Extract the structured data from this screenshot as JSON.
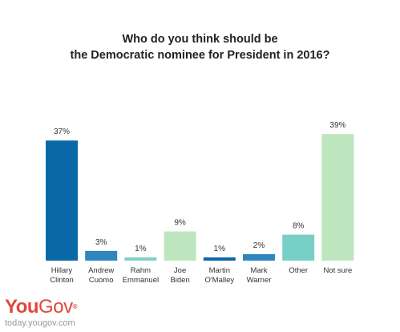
{
  "title_line1": "Who do you think should be",
  "title_line2": "the Democratic nominee for President in 2016?",
  "brand": {
    "you": "You",
    "gov": "Gov",
    "reg": "®",
    "site": "today.yougov.com"
  },
  "chart_data": {
    "type": "bar",
    "title": "Who do you think should be the Democratic nominee for President in 2016?",
    "categories": [
      [
        "Hillary",
        "Clinton"
      ],
      [
        "Andrew",
        "Cuomo"
      ],
      [
        "Rahm",
        "Emmanuel"
      ],
      [
        "Joe",
        "Biden"
      ],
      [
        "Martin",
        "O'Malley"
      ],
      [
        "Mark",
        "Warner"
      ],
      [
        "Other"
      ],
      [
        "Not sure"
      ]
    ],
    "values": [
      37,
      3,
      1,
      9,
      1,
      2,
      8,
      39
    ],
    "value_labels": [
      "37%",
      "3%",
      "1%",
      "9%",
      "1%",
      "2%",
      "8%",
      "39%"
    ],
    "colors": [
      "#0b68a8",
      "#2e86bd",
      "#7fd0c9",
      "#bde6bf",
      "#0b68a8",
      "#2e86bd",
      "#78cfc6",
      "#bde6bf"
    ],
    "ylim": [
      0,
      42
    ],
    "grid": false
  }
}
